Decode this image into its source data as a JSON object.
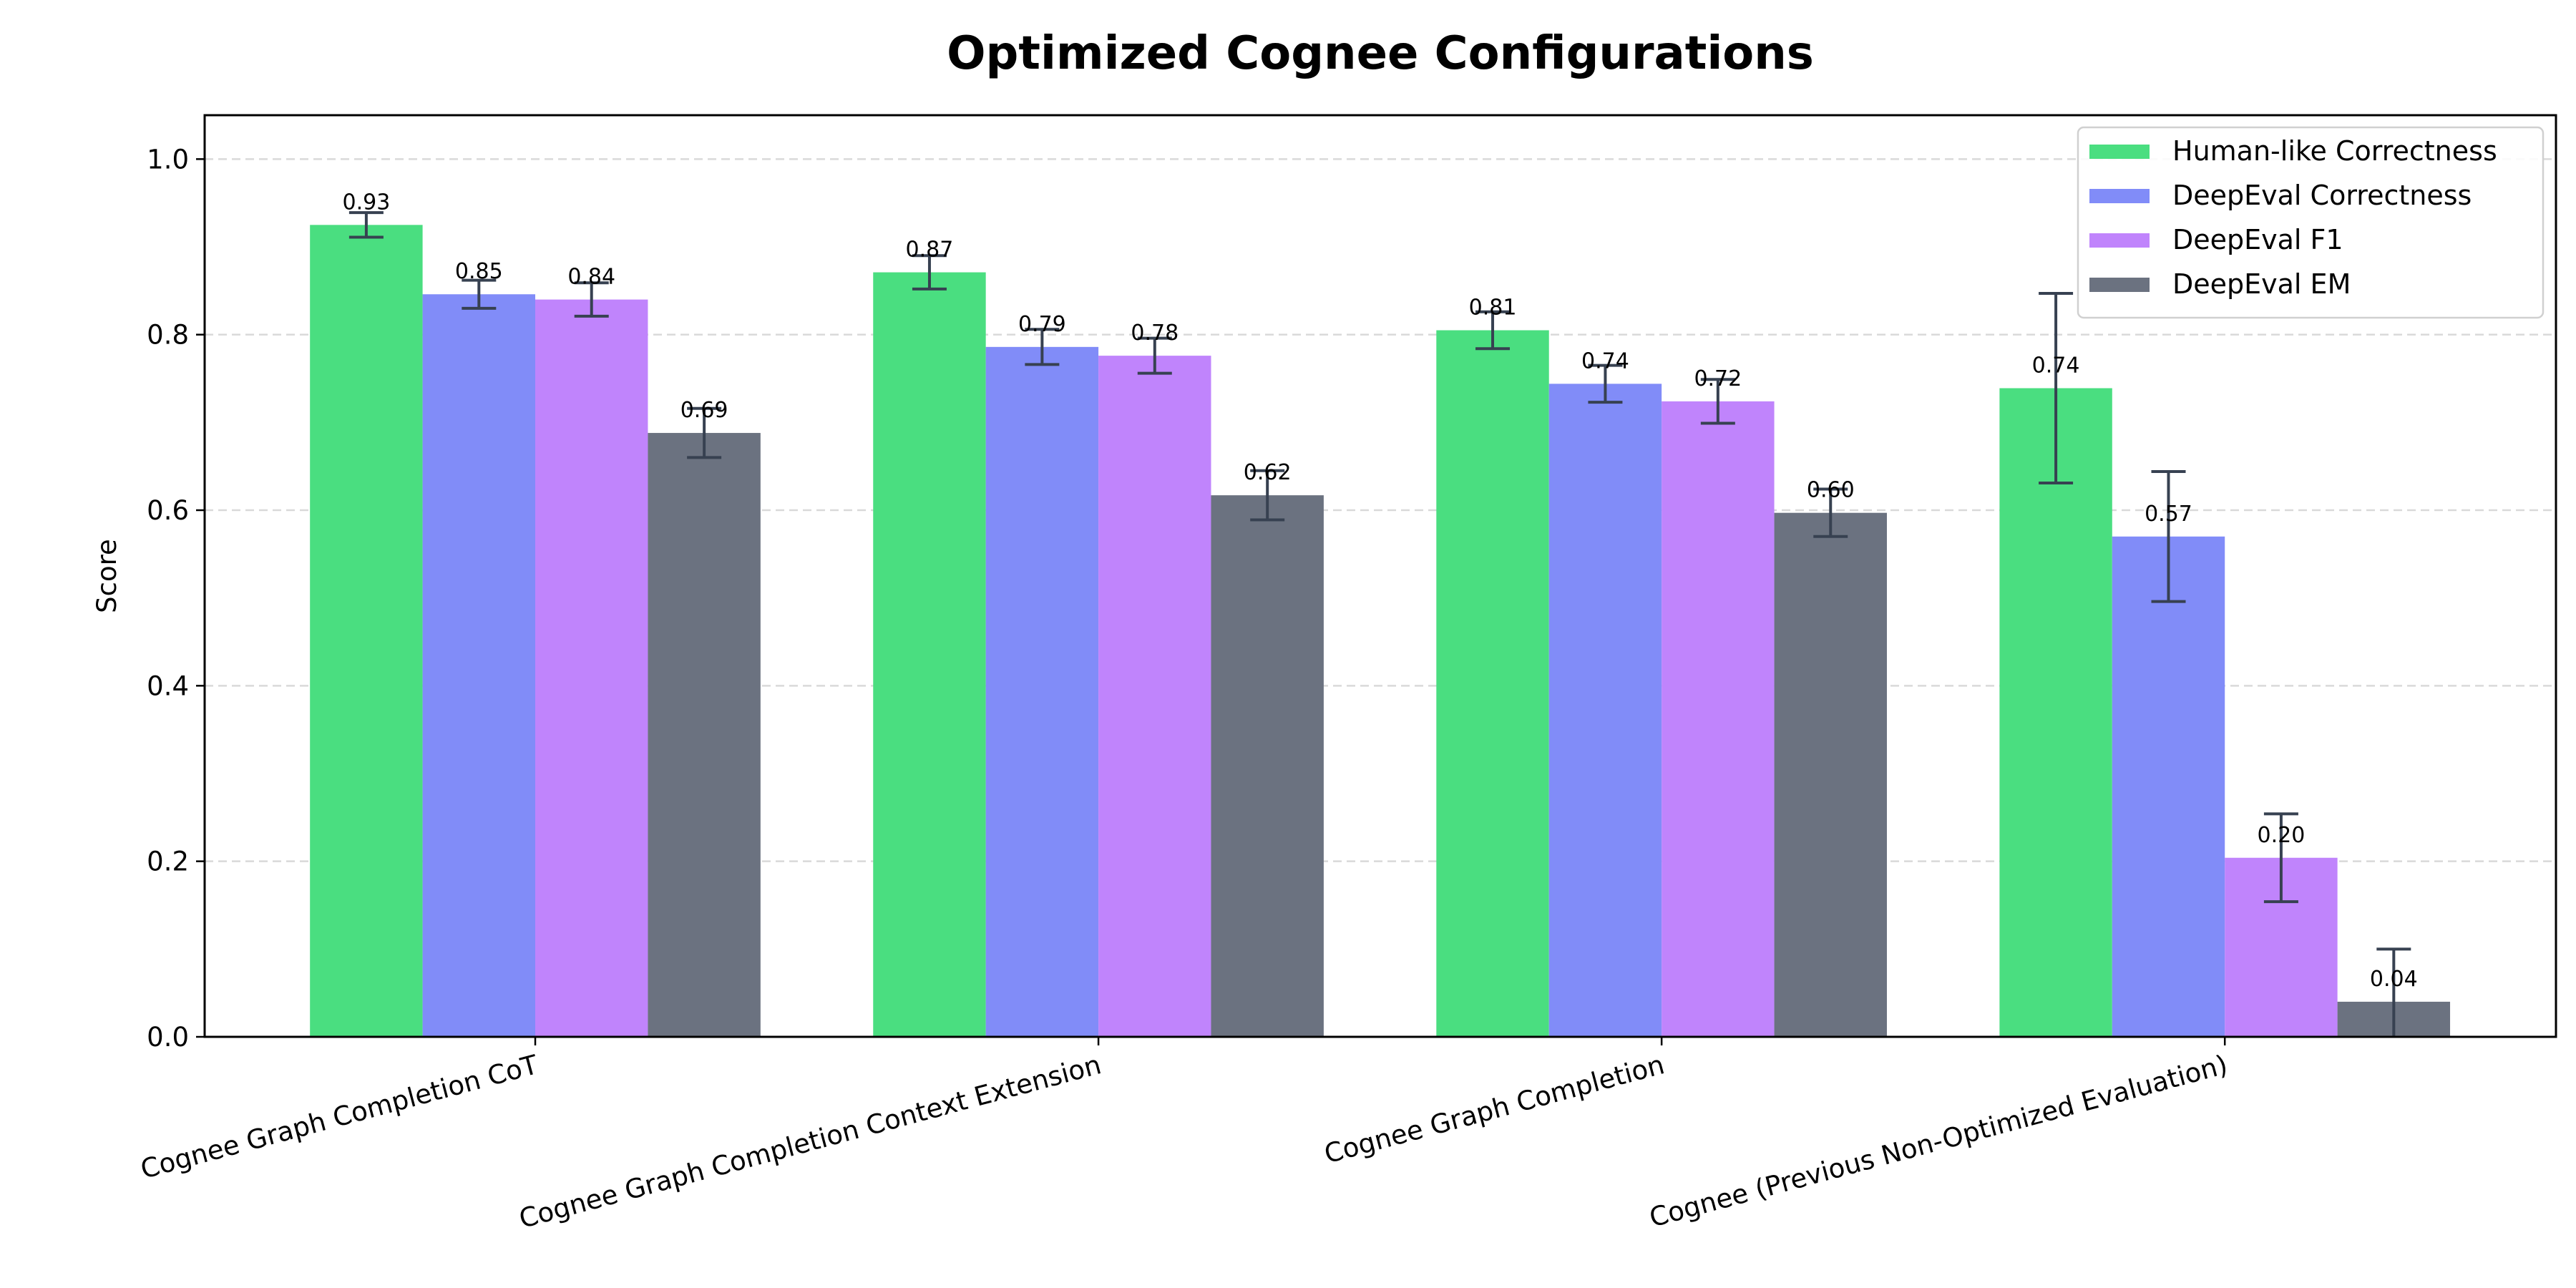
{
  "chart_data": {
    "type": "bar",
    "title": "Optimized Cognee Configurations",
    "xlabel": "",
    "ylabel": "Score",
    "ylim": [
      0,
      1.05
    ],
    "yticks": [
      "0.0",
      "0.2",
      "0.4",
      "0.6",
      "0.8",
      "1.0"
    ],
    "grid": "y-dashed",
    "legend_position": "top-right",
    "categories": [
      "Cognee Graph Completion CoT",
      "Cognee Graph Completion Context Extension",
      "Cognee Graph Completion",
      "Cognee (Previous Non-Optimized Evaluation)"
    ],
    "series": [
      {
        "name": "Human-like Correctness",
        "color": "#4ade80",
        "values": [
          0.925,
          0.871,
          0.805,
          0.739
        ],
        "labels": [
          "0.93",
          "0.87",
          "0.81",
          "0.74"
        ],
        "errors": [
          0.014,
          0.019,
          0.021,
          0.108
        ]
      },
      {
        "name": "DeepEval Correctness",
        "color": "#818cf8",
        "values": [
          0.846,
          0.786,
          0.744,
          0.57
        ],
        "labels": [
          "0.85",
          "0.79",
          "0.74",
          "0.57"
        ],
        "errors": [
          0.016,
          0.02,
          0.021,
          0.074
        ]
      },
      {
        "name": "DeepEval F1",
        "color": "#c084fc",
        "values": [
          0.84,
          0.776,
          0.724,
          0.204
        ],
        "labels": [
          "0.84",
          "0.78",
          "0.72",
          "0.20"
        ],
        "errors": [
          0.019,
          0.02,
          0.025,
          0.05
        ]
      },
      {
        "name": "DeepEval EM",
        "color": "#6b7280",
        "values": [
          0.688,
          0.617,
          0.597,
          0.04
        ],
        "labels": [
          "0.69",
          "0.62",
          "0.60",
          "0.04"
        ],
        "errors": [
          0.028,
          0.028,
          0.027,
          0.06
        ]
      }
    ],
    "error_bar_color": "#374151"
  }
}
